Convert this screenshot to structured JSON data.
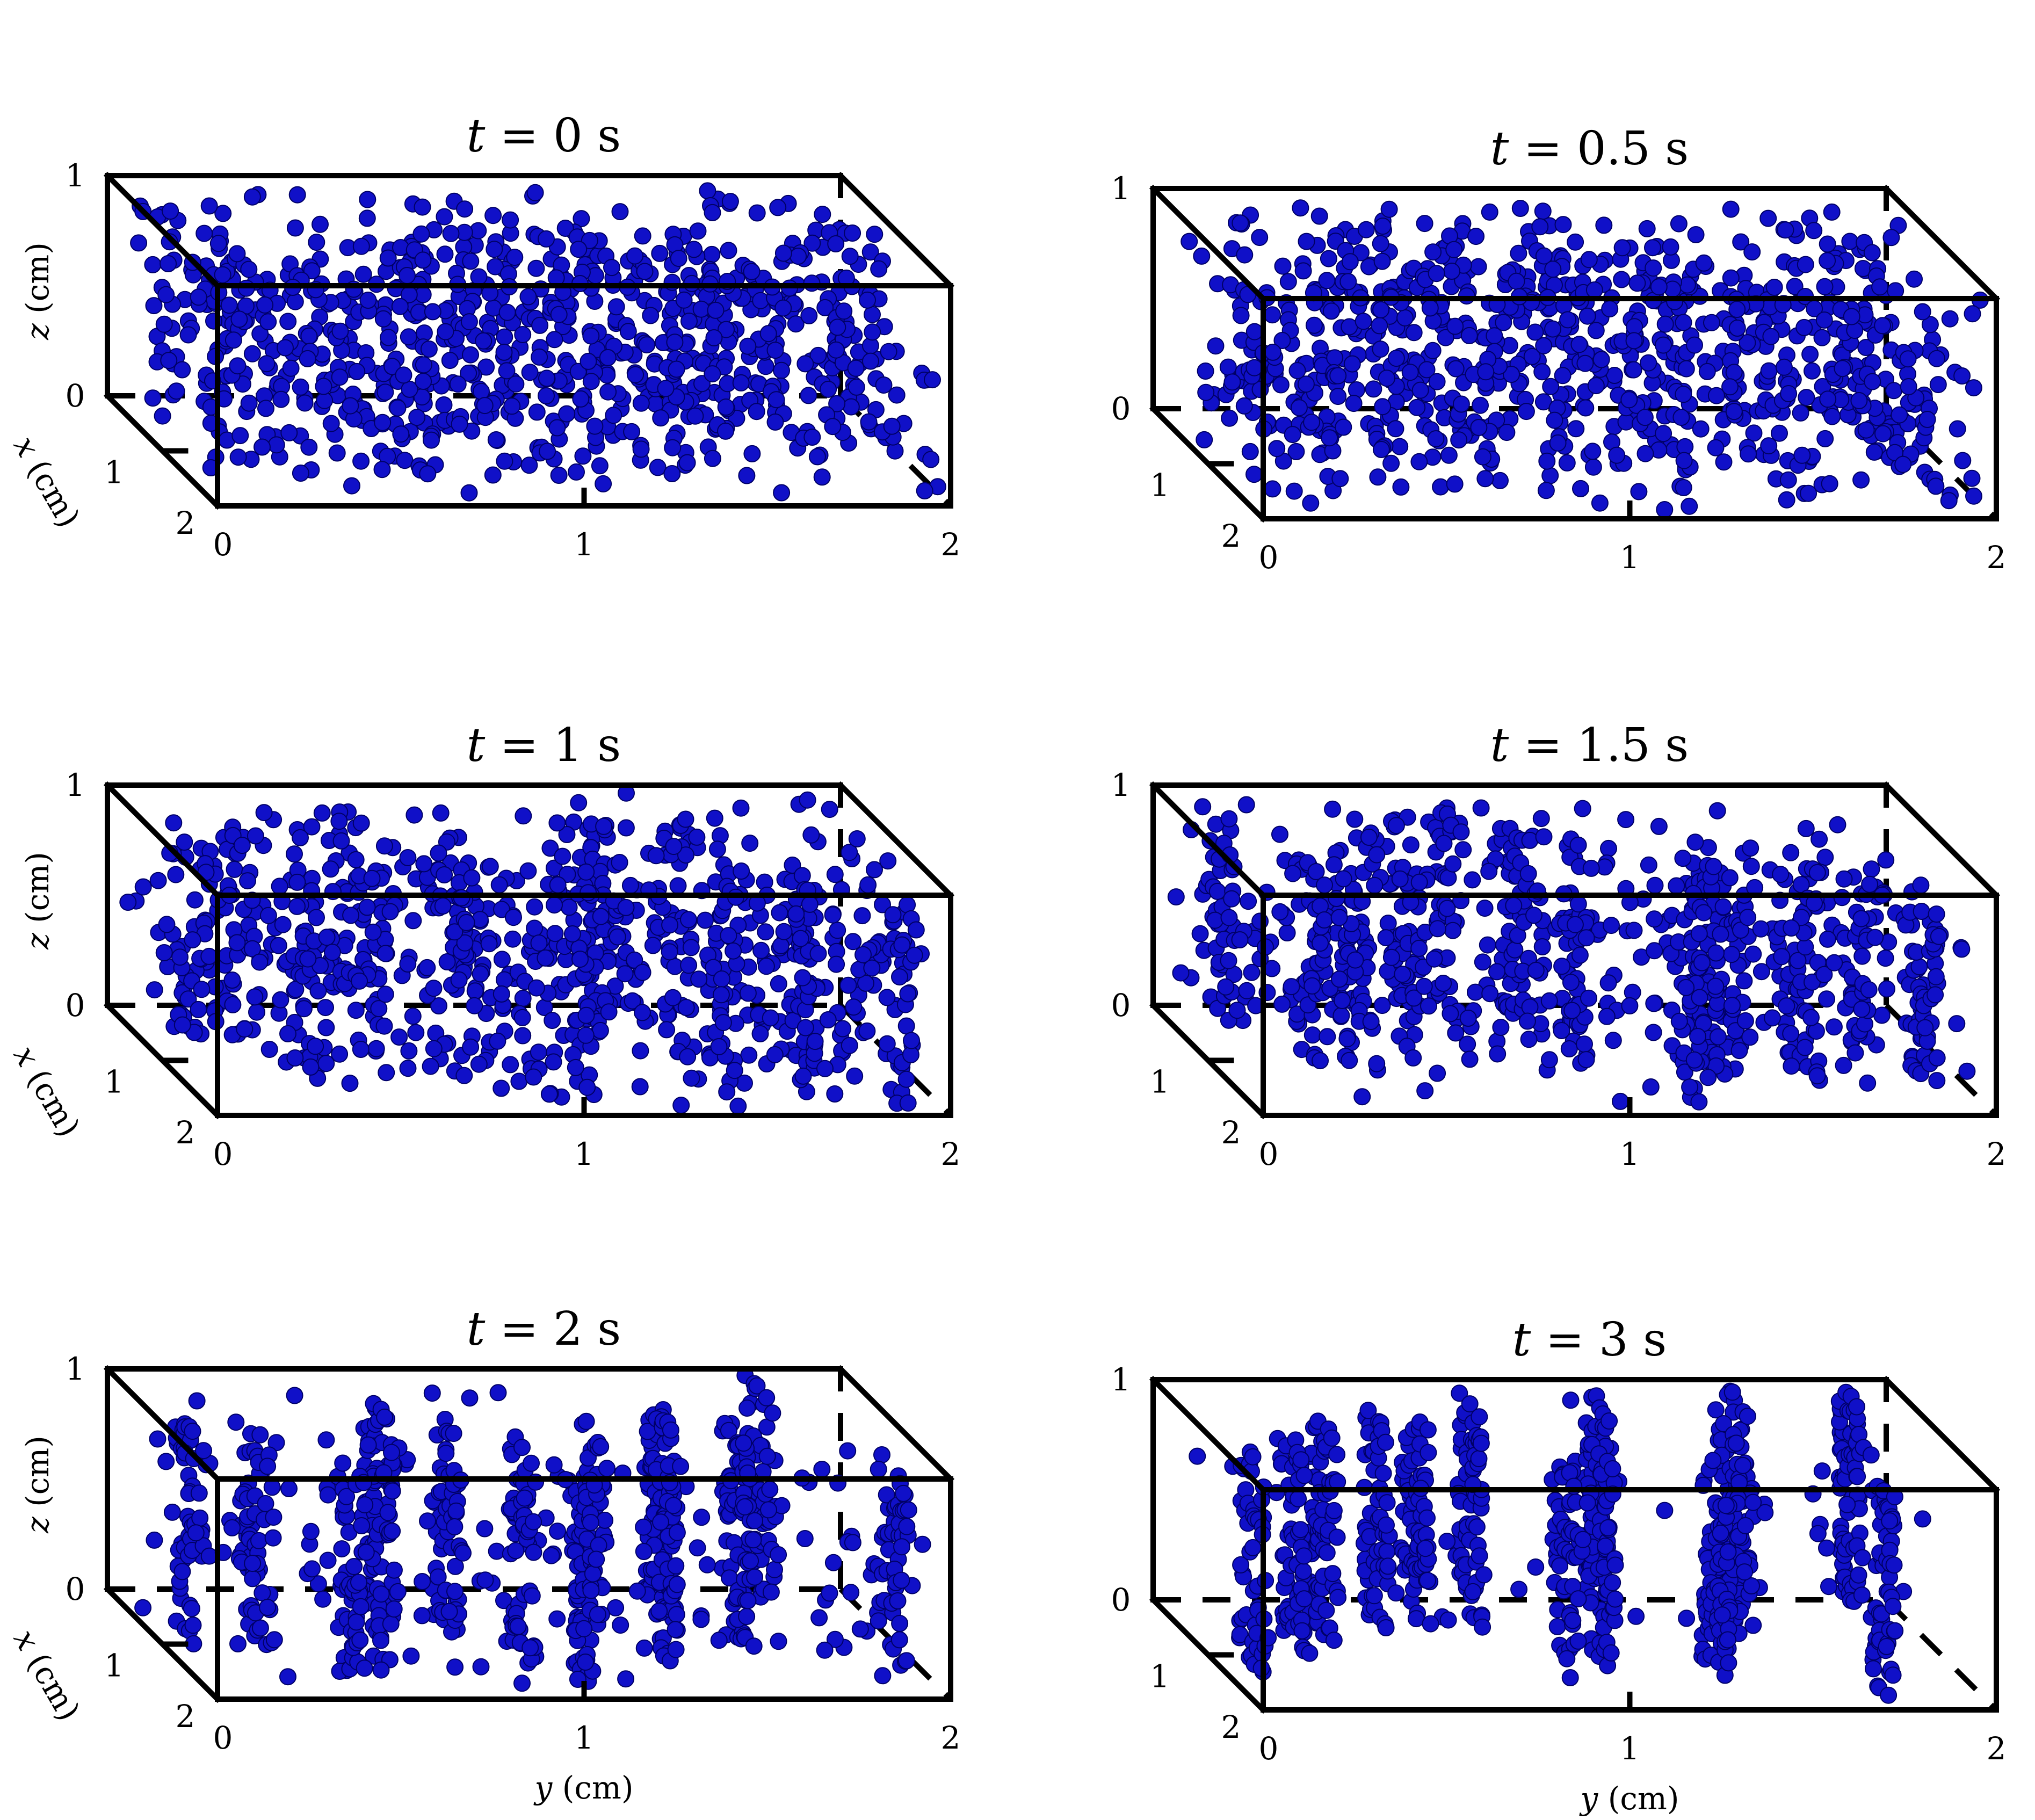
{
  "figure": {
    "xlabel": "x (cm)",
    "ylabel": "y (cm)",
    "zlabel": "z (cm)",
    "y_ticks": [
      "0",
      "1",
      "2"
    ],
    "z_ticks": [
      "0",
      "1"
    ],
    "x_ticks": [
      "1",
      "2"
    ],
    "particle_color": "#1010c8"
  },
  "chart_data": [
    {
      "type": "scatter",
      "subtype": "3d-scatter",
      "title": "t = 0 s",
      "title_var": "t",
      "title_rest": " = 0 s",
      "xlim": [
        0,
        2
      ],
      "ylim": [
        0,
        2
      ],
      "zlim": [
        0,
        1
      ],
      "distribution": "uniform random",
      "n_particles": 900,
      "column_clustering": 0.0
    },
    {
      "type": "scatter",
      "subtype": "3d-scatter",
      "title": "t = 0.5 s",
      "title_var": "t",
      "title_rest": " = 0.5 s",
      "xlim": [
        0,
        2
      ],
      "ylim": [
        0,
        2
      ],
      "zlim": [
        0,
        1
      ],
      "distribution": "uniform random",
      "n_particles": 900,
      "column_clustering": 0.15
    },
    {
      "type": "scatter",
      "subtype": "3d-scatter",
      "title": "t = 1 s",
      "title_var": "t",
      "title_rest": " = 1 s",
      "xlim": [
        0,
        2
      ],
      "ylim": [
        0,
        2
      ],
      "zlim": [
        0,
        1
      ],
      "distribution": "weak vertical columns",
      "n_particles": 900,
      "column_clustering": 0.35
    },
    {
      "type": "scatter",
      "subtype": "3d-scatter",
      "title": "t = 1.5 s",
      "title_var": "t",
      "title_rest": " = 1.5 s",
      "xlim": [
        0,
        2
      ],
      "ylim": [
        0,
        2
      ],
      "zlim": [
        0,
        1
      ],
      "distribution": "vertical columns",
      "n_particles": 900,
      "column_clustering": 0.6
    },
    {
      "type": "scatter",
      "subtype": "3d-scatter",
      "title": "t = 2 s",
      "title_var": "t",
      "title_rest": " = 2 s",
      "xlim": [
        0,
        2
      ],
      "ylim": [
        0,
        2
      ],
      "zlim": [
        0,
        1
      ],
      "distribution": "vertical columns",
      "n_particles": 900,
      "column_clustering": 0.8
    },
    {
      "type": "scatter",
      "subtype": "3d-scatter",
      "title": "t = 3 s",
      "title_var": "t",
      "title_rest": " = 3 s",
      "xlim": [
        0,
        2
      ],
      "ylim": [
        0,
        2
      ],
      "zlim": [
        0,
        1
      ],
      "distribution": "aligned vertical chains",
      "n_particles": 900,
      "column_clustering": 0.95
    }
  ]
}
